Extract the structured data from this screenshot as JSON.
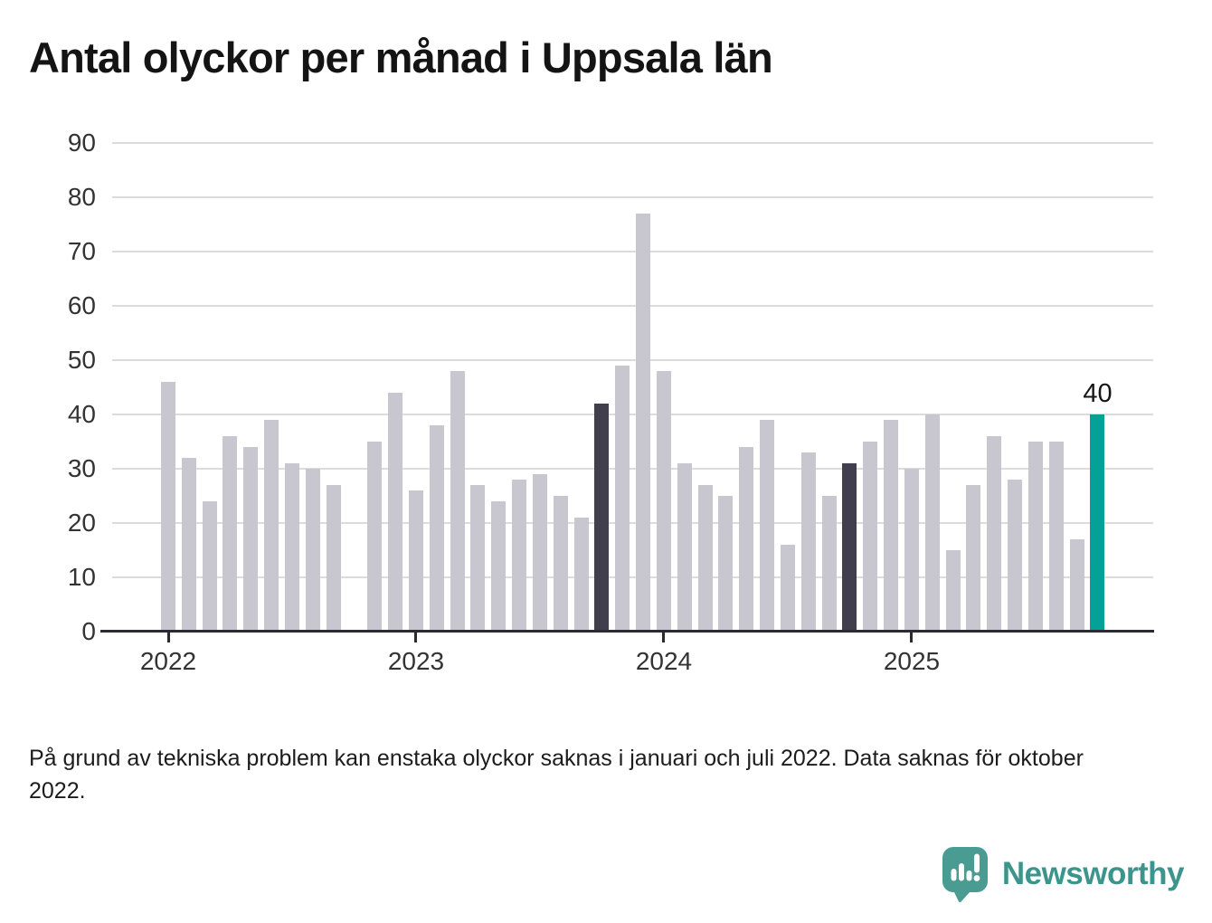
{
  "title": "Antal olyckor per månad i Uppsala län",
  "footnote": "På grund av tekniska problem kan enstaka olyckor saknas i januari och juli 2022. Data saknas för oktober 2022.",
  "branding": {
    "name": "Newsworthy",
    "icon": "newsworthy-speech-bubble-chart-icon"
  },
  "chart_data": {
    "type": "bar",
    "title": "Antal olyckor per månad i Uppsala län",
    "x": [
      "2022-01",
      "2022-02",
      "2022-03",
      "2022-04",
      "2022-05",
      "2022-06",
      "2022-07",
      "2022-08",
      "2022-09",
      "2022-10",
      "2022-11",
      "2022-12",
      "2023-01",
      "2023-02",
      "2023-03",
      "2023-04",
      "2023-05",
      "2023-06",
      "2023-07",
      "2023-08",
      "2023-09",
      "2023-10",
      "2023-11",
      "2023-12",
      "2024-01",
      "2024-02",
      "2024-03",
      "2024-04",
      "2024-05",
      "2024-06",
      "2024-07",
      "2024-08",
      "2024-09",
      "2024-10",
      "2024-11",
      "2024-12",
      "2025-01",
      "2025-02",
      "2025-03",
      "2025-04",
      "2025-05",
      "2025-06",
      "2025-07",
      "2025-08",
      "2025-09",
      "2025-10"
    ],
    "values": [
      46,
      32,
      24,
      36,
      34,
      39,
      31,
      30,
      27,
      null,
      35,
      44,
      26,
      38,
      48,
      27,
      24,
      28,
      29,
      25,
      21,
      42,
      49,
      77,
      48,
      31,
      27,
      25,
      34,
      39,
      16,
      33,
      25,
      31,
      35,
      39,
      30,
      40,
      15,
      27,
      36,
      28,
      35,
      35,
      17,
      40
    ],
    "missing_months": [
      "2022-10"
    ],
    "highlighted_dark": [
      "2023-10",
      "2024-10"
    ],
    "highlighted_accent": [
      "2025-10"
    ],
    "accent_label": {
      "month": "2025-10",
      "text": "40"
    },
    "xlabel": "",
    "ylabel": "",
    "x_tick_labels": [
      "2022",
      "2023",
      "2024",
      "2025"
    ],
    "yticks": [
      0,
      10,
      20,
      30,
      40,
      50,
      60,
      70,
      80,
      90
    ],
    "ylim": [
      0,
      90
    ],
    "grid": "horizontal",
    "legend": "none",
    "colors": {
      "default": "#c8c7d0",
      "dark": "#413f4e",
      "accent": "#05a096"
    }
  }
}
